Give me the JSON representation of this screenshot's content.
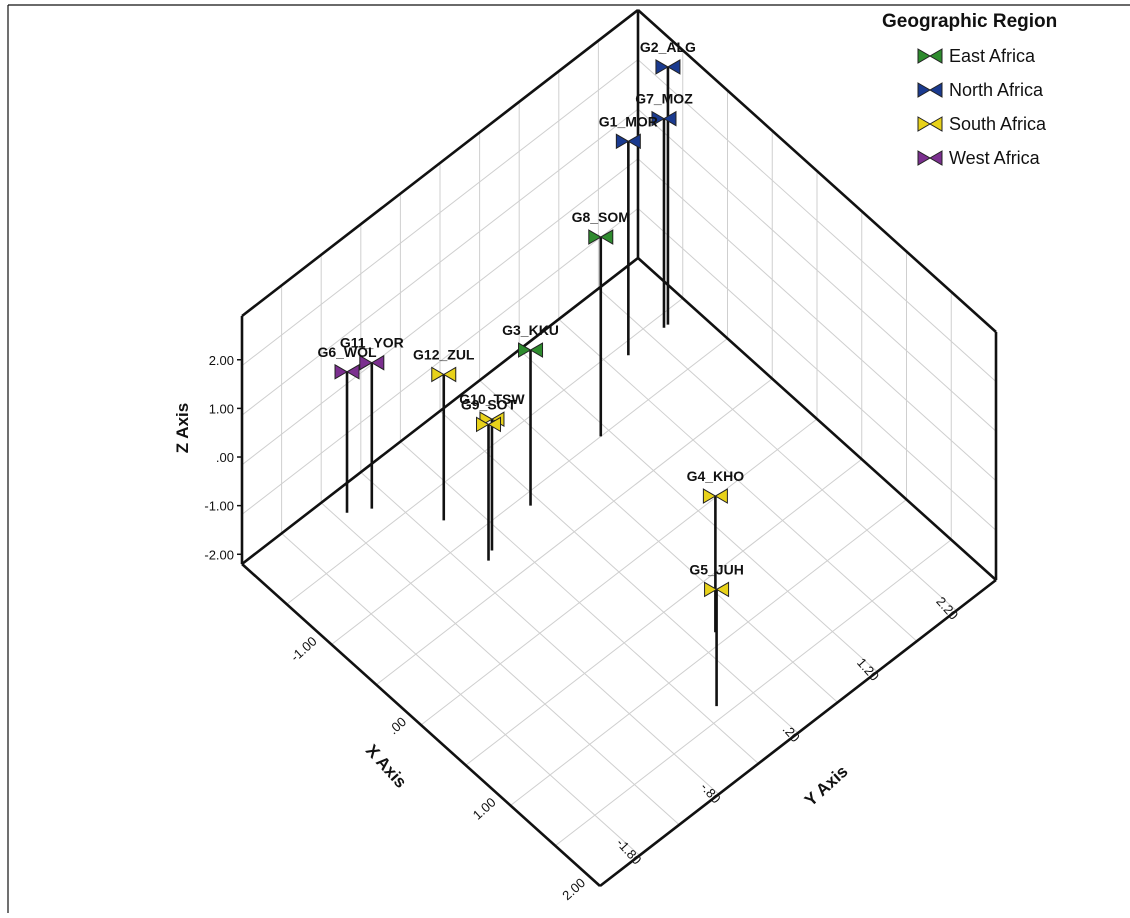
{
  "chart_data": {
    "type": "scatter",
    "subtype": "3d-scatter-with-droplines",
    "title": "",
    "xlabel": "X Axis",
    "ylabel": "Y Axis",
    "zlabel": "Z Axis",
    "x_ticks": [
      "2.20",
      "1.20",
      ".20",
      "-.80",
      "-1.80"
    ],
    "y_ticks": [
      "-1.00",
      ".00",
      "1.00",
      "2.00"
    ],
    "z_ticks": [
      "2.00",
      "1.00",
      ".00",
      "-1.00",
      "-2.00"
    ],
    "xlim": [
      -2.3,
      2.7
    ],
    "ylim": [
      -1.8,
      2.2
    ],
    "zlim": [
      -2.2,
      2.9
    ],
    "legend": {
      "title": "Geographic Region",
      "position": "top-right",
      "entries": [
        {
          "name": "East Africa",
          "color": "#2e8b2e"
        },
        {
          "name": "North Africa",
          "color": "#1a3a8f"
        },
        {
          "name": "South Africa",
          "color": "#e8d21a"
        },
        {
          "name": "West Africa",
          "color": "#7b2f8f"
        }
      ]
    },
    "points": [
      {
        "label": "G2_ALG",
        "region": "North Africa",
        "x": 2.4,
        "y": -1.2,
        "z": 3.1
      },
      {
        "label": "G7_MOZ",
        "region": "North Africa",
        "x": 2.35,
        "y": -1.2,
        "z": 2.1
      },
      {
        "label": "G1_MOR",
        "region": "North Africa",
        "x": 1.9,
        "y": -1.2,
        "z": 2.2
      },
      {
        "label": "G8_SOM",
        "region": "East Africa",
        "x": 1.1,
        "y": -0.8,
        "z": 1.9
      },
      {
        "label": "G3_KKU",
        "region": "East Africa",
        "x": 0.1,
        "y": -0.7,
        "z": 1.0
      },
      {
        "label": "G12_ZUL",
        "region": "South Africa",
        "x": -0.6,
        "y": -1.05,
        "z": 0.8
      },
      {
        "label": "G10_TSW",
        "region": "South Africa",
        "x": -0.5,
        "y": -0.6,
        "z": 0.5
      },
      {
        "label": "G9_SOT",
        "region": "South Africa",
        "x": -0.6,
        "y": -0.55,
        "z": 0.6
      },
      {
        "label": "G11_YOR",
        "region": "West Africa",
        "x": -1.0,
        "y": -1.5,
        "z": 0.8
      },
      {
        "label": "G6_WOL",
        "region": "West Africa",
        "x": -1.2,
        "y": -1.6,
        "z": 0.7
      },
      {
        "label": "G4_KHO",
        "region": "South Africa",
        "x": 0.4,
        "y": 1.1,
        "z": 0.6
      },
      {
        "label": "G5_JUH",
        "region": "South Africa",
        "x": -0.15,
        "y": 1.6,
        "z": 0.2
      }
    ]
  }
}
